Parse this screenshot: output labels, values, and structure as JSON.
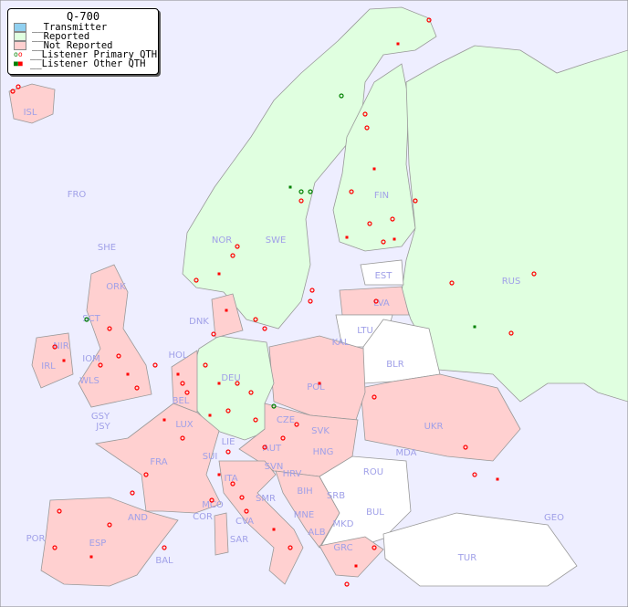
{
  "legend": {
    "title": "Q-700",
    "items": [
      {
        "label": "__Transmitter",
        "color": "#90d0f0"
      },
      {
        "label": "__Reported",
        "color": "#e0ffe0"
      },
      {
        "label": "__Not Reported",
        "color": "#ffd0d0"
      },
      {
        "label": "__Listener Primary QTH",
        "symbol": "circle",
        "colors": [
          "#008000",
          "#ff0000"
        ]
      },
      {
        "label": "__Listener Other QTH",
        "symbol": "square",
        "colors": [
          "#008000",
          "#ff0000"
        ]
      }
    ]
  },
  "colors": {
    "sea": "#eeeeff",
    "reported": "#e0ffe0",
    "not_reported": "#ffd0d0",
    "no_data": "#ffffff",
    "label": "#a0a0e8"
  },
  "countries": [
    "ISL",
    "FRO",
    "SHE",
    "ORK",
    "NOR",
    "SWE",
    "FIN",
    "RUS",
    "EST",
    "LVA",
    "LTU",
    "KAL",
    "BLR",
    "DNK",
    "HOL",
    "IOM",
    "NIR",
    "SCT",
    "IRL",
    "WLS",
    "GSY",
    "JSY",
    "BEL",
    "LUX",
    "DEU",
    "POL",
    "CZE",
    "SVK",
    "UKR",
    "MDA",
    "AUT",
    "HNG",
    "FRA",
    "SUI",
    "LIE",
    "SVN",
    "HRV",
    "ROU",
    "ITA",
    "BIH",
    "SRB",
    "MCO",
    "COR",
    "CVA",
    "SMR",
    "MNE",
    "BUL",
    "GEO",
    "AND",
    "MKD",
    "ALB",
    "SAR",
    "POR",
    "ESP",
    "BAL",
    "GRC",
    "TUR"
  ]
}
